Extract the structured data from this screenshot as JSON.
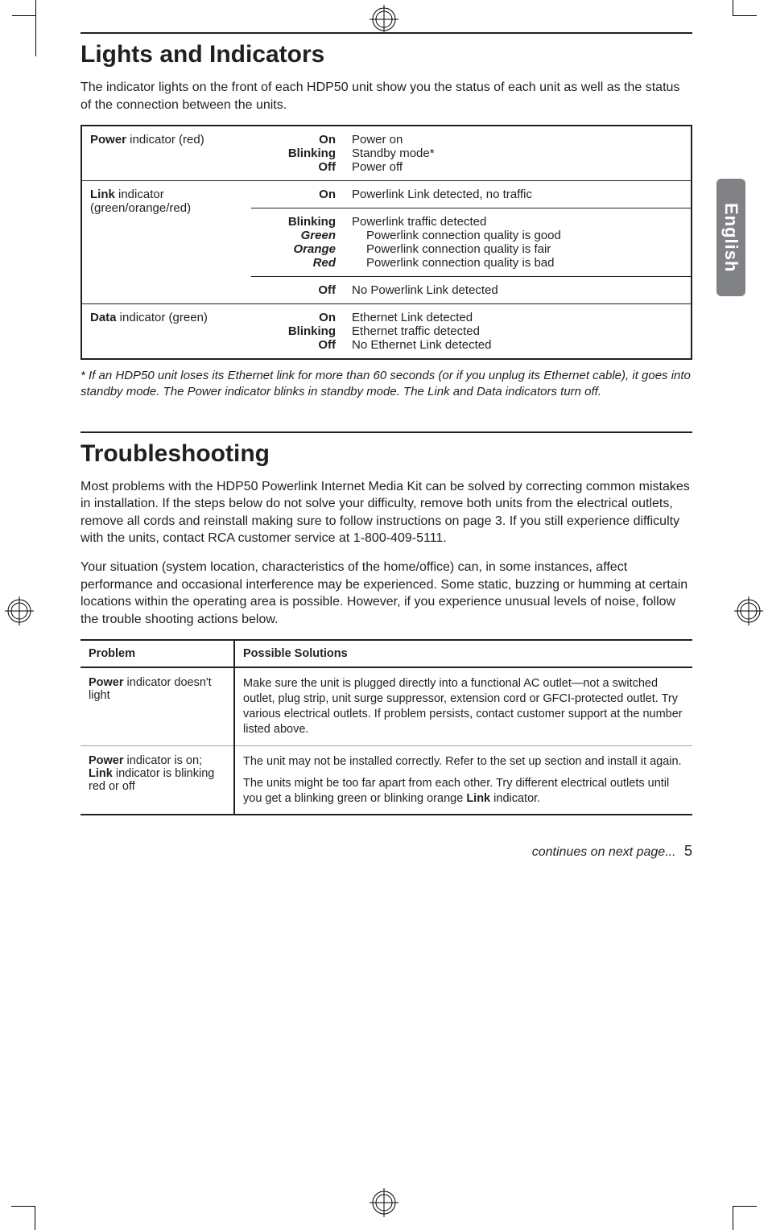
{
  "side_tab": {
    "label": "English",
    "bg": "#808285",
    "fg": "#ffffff"
  },
  "section1": {
    "title": "Lights and Indicators",
    "intro": "The indicator lights on the front of each HDP50 unit show you the status of each unit as well as the status of the connection between the units.",
    "indicator_table": {
      "border_color": "#231f20",
      "rows": [
        {
          "label_html": "<span class='b'>Power</span> indicator (red)",
          "states": [
            {
              "state": "On",
              "state_class": "b",
              "desc": "Power on"
            },
            {
              "state": "Blinking",
              "state_class": "b",
              "desc": "Standby mode*"
            },
            {
              "state": "Off",
              "state_class": "b",
              "desc": "Power off"
            }
          ]
        },
        {
          "label_html": "<span class='b'>Link</span> indicator (green/orange/red)",
          "blocks": [
            {
              "states": [
                {
                  "state": "On",
                  "state_class": "b",
                  "desc": "Powerlink Link detected, no traffic"
                }
              ]
            },
            {
              "states": [
                {
                  "state": "Blinking",
                  "state_class": "b",
                  "desc": "Powerlink traffic detected"
                },
                {
                  "state": "Green",
                  "state_class": "ib",
                  "desc_indent": true,
                  "desc": "Powerlink connection quality is good"
                },
                {
                  "state": "Orange",
                  "state_class": "ib",
                  "desc_indent": true,
                  "desc": "Powerlink connection quality is fair"
                },
                {
                  "state": "Red",
                  "state_class": "ib",
                  "desc_indent": true,
                  "desc": "Powerlink connection quality is bad"
                }
              ]
            },
            {
              "states": [
                {
                  "state": "Off",
                  "state_class": "b",
                  "desc": "No Powerlink Link detected"
                }
              ]
            }
          ]
        },
        {
          "label_html": "<span class='b'>Data</span> indicator (green)",
          "states": [
            {
              "state": "On",
              "state_class": "b",
              "desc": "Ethernet Link detected"
            },
            {
              "state": "Blinking",
              "state_class": "b",
              "desc": "Ethernet traffic detected"
            },
            {
              "state": "Off",
              "state_class": "b",
              "desc": "No Ethernet Link detected"
            }
          ]
        }
      ]
    },
    "footnote": "* If an HDP50 unit loses its Ethernet link for more than 60 seconds (or if you unplug its Ethernet cable), it goes into standby mode. The Power indicator blinks in standby mode. The Link and Data indicators turn off."
  },
  "section2": {
    "title": "Troubleshooting",
    "para1_html": "Most problems with the HDP50 Powerlink Internet Media Kit can be solved by correcting common mistakes in installation. If the steps below do not solve your difficulty, remove both units from the electrical outlets, remove all cords and reinstall making sure to follow instructions on page 3. If you still experience difficulty with the units, contact RCA customer service at 1-800-409-5111.",
    "para2": "Your situation (system location, characteristics of the home/office) can, in some instances, affect performance and occasional interference may be experienced. Some static, buzzing or humming at certain locations within the operating area is possible. However, if you experience unusual levels of noise, follow the trouble shooting actions below.",
    "table": {
      "head_problem": "Problem",
      "head_solutions": "Possible Solutions",
      "rows": [
        {
          "problem_html": "<span class='b'>Power</span> indicator doesn't light",
          "solutions": [
            "Make sure the unit is plugged directly into a functional AC outlet—not a switched outlet, plug strip, unit surge suppressor, extension cord or GFCI-protected outlet. Try various electrical outlets. If problem persists, contact customer support at the number listed above."
          ]
        },
        {
          "problem_html": "<span class='b'>Power</span> indicator is on; <span class='b'>Link</span> indicator is blinking red or off",
          "solutions": [
            "The unit may not be installed correctly. Refer to the set up section and install it again.",
            "The units might be too far apart from each other. Try different electrical outlets until you get a blinking green or blinking orange <span class='b'>Link</span> indicator."
          ]
        }
      ]
    }
  },
  "footer": {
    "continues": "continues on next page...",
    "page_number": "5"
  }
}
